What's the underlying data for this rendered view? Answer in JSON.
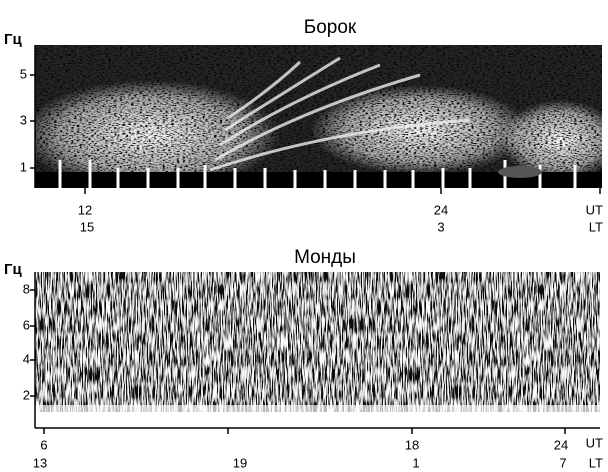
{
  "panels": [
    {
      "title": "Борок",
      "y_unit": "Гц",
      "y_ticks": [
        5,
        3,
        1
      ],
      "ut_ticks": [
        12,
        24
      ],
      "lt_ticks": [
        15,
        3
      ],
      "ut_label": "UT",
      "lt_label": "LT"
    },
    {
      "title": "Монды",
      "y_unit": "Гц",
      "y_ticks": [
        8,
        6,
        4,
        2
      ],
      "ut_ticks": [
        6,
        18,
        24
      ],
      "lt_ticks": [
        13,
        19,
        1,
        7
      ],
      "ut_label": "UT",
      "lt_label": "LT"
    }
  ]
}
